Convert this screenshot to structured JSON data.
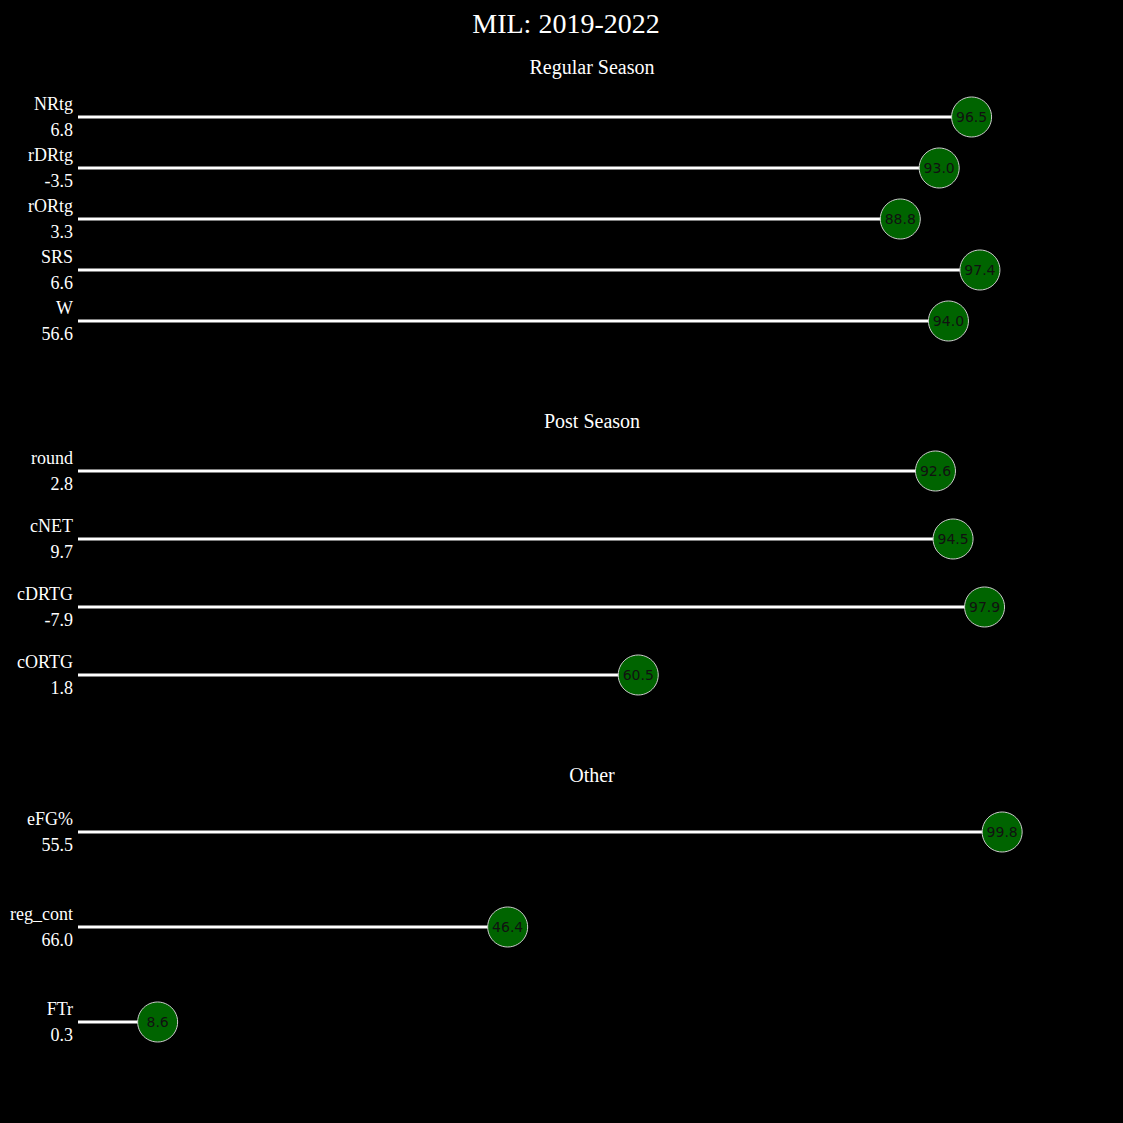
{
  "chart_data": {
    "type": "lollipop",
    "orientation": "horizontal",
    "title": "MIL: 2019-2022",
    "xlim": [
      0,
      100
    ],
    "tick_labels": "y",
    "grid": false,
    "data_labels": true,
    "color": "#006400",
    "sections": [
      {
        "title": "Regular Season",
        "categories": [
          "NRtg",
          "rDRtg",
          "rORtg",
          "SRS",
          "W"
        ],
        "stats": [
          "6.8",
          "-3.5",
          "3.3",
          "6.6",
          "56.6"
        ],
        "values": [
          96.5,
          93.0,
          88.8,
          97.4,
          94.0
        ],
        "value_labels": [
          "96.5",
          "93.0",
          "88.8",
          "97.4",
          "94.0"
        ]
      },
      {
        "title": "Post Season",
        "categories": [
          "round",
          "cNET",
          "cDRTG",
          "cORTG"
        ],
        "stats": [
          "2.8",
          "9.7",
          "-7.9",
          "1.8"
        ],
        "values": [
          92.6,
          94.5,
          97.9,
          60.5
        ],
        "value_labels": [
          "92.6",
          "94.5",
          "97.9",
          "60.5"
        ]
      },
      {
        "title": "Other",
        "categories": [
          "eFG%",
          "reg_cont",
          "FTr"
        ],
        "stats": [
          "55.5",
          "66.0",
          "0.3"
        ],
        "values": [
          99.8,
          46.4,
          8.6
        ],
        "value_labels": [
          "99.8",
          "46.4",
          "8.6"
        ]
      }
    ]
  }
}
